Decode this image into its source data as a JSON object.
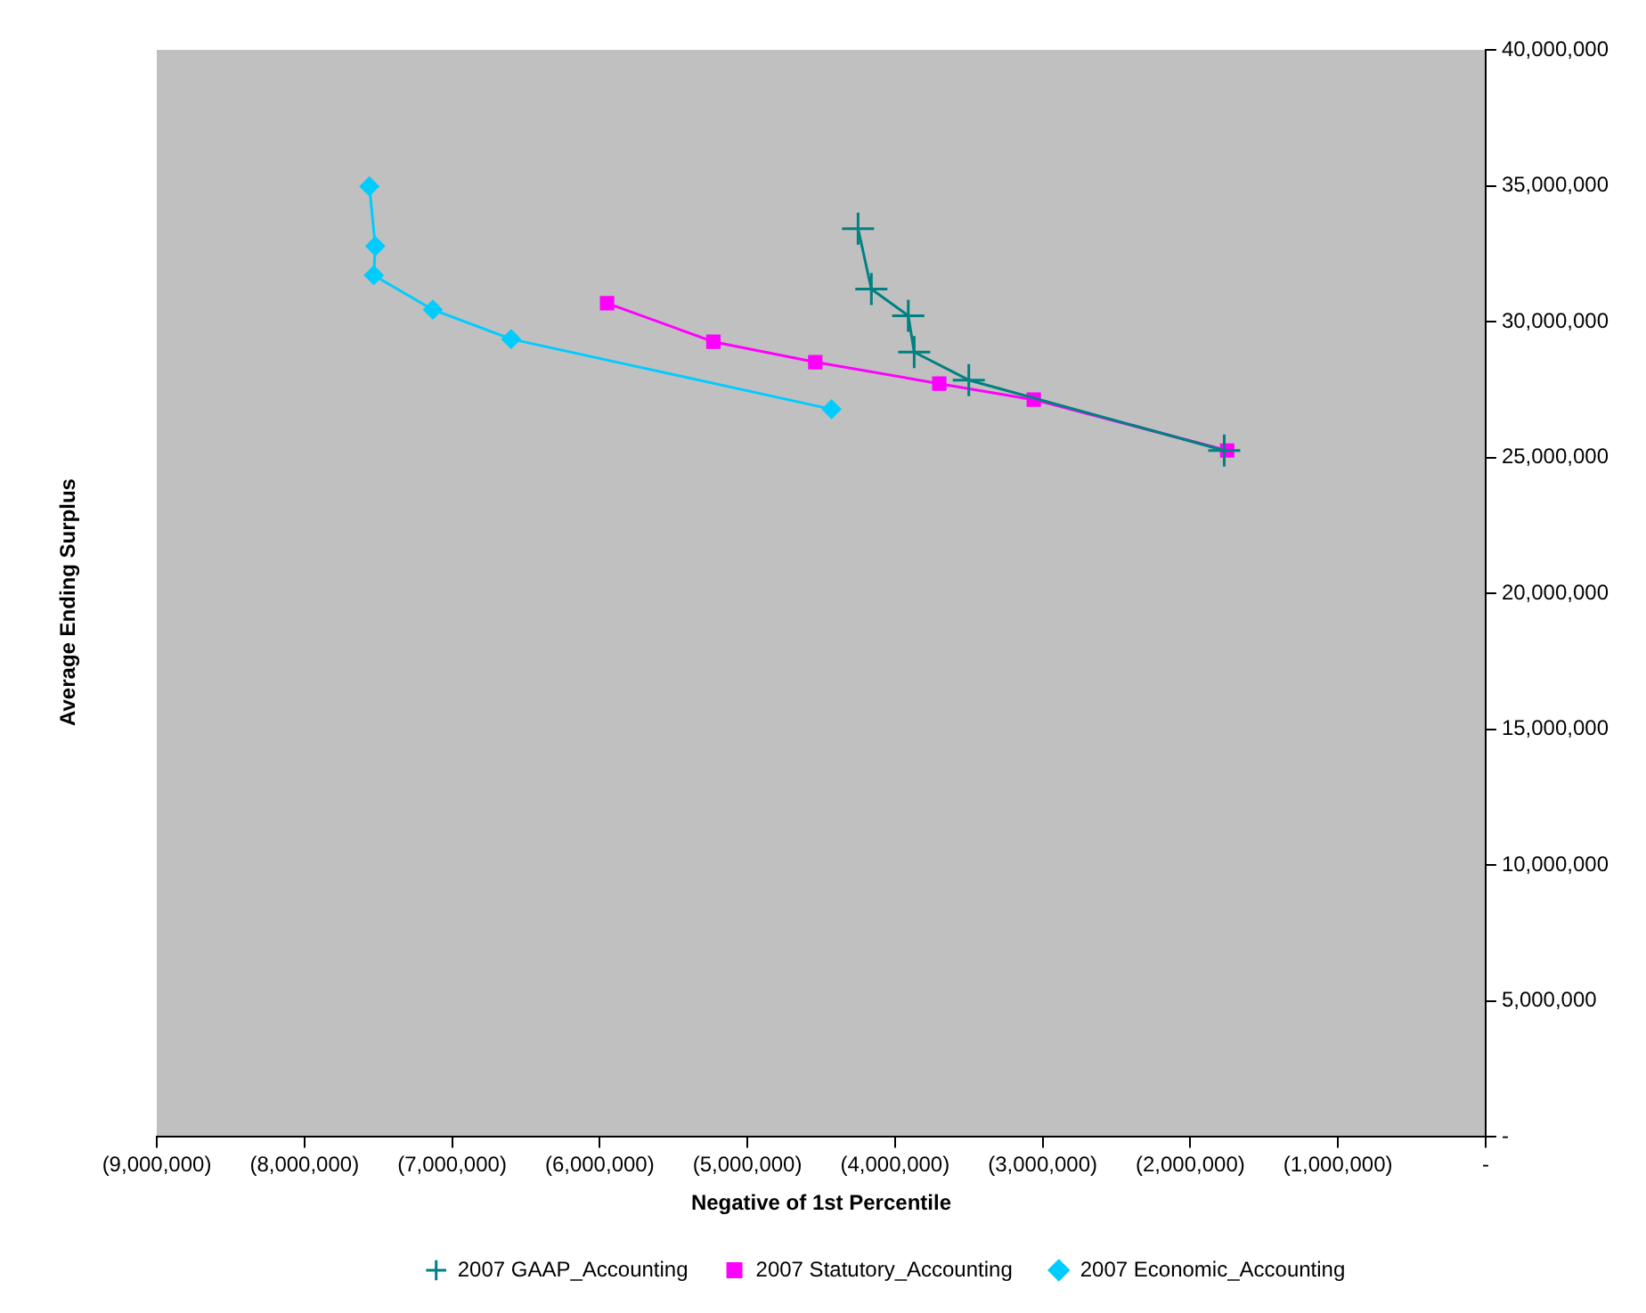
{
  "chart_data": {
    "type": "line",
    "xlabel": "Negative of 1st Percentile",
    "ylabel": "Average Ending Surplus",
    "xlim": [
      -9000000,
      0
    ],
    "ylim": [
      0,
      40000000
    ],
    "xticks": [
      {
        "value": -9000000,
        "label": "(9,000,000)"
      },
      {
        "value": -8000000,
        "label": "(8,000,000)"
      },
      {
        "value": -7000000,
        "label": "(7,000,000)"
      },
      {
        "value": -6000000,
        "label": "(6,000,000)"
      },
      {
        "value": -5000000,
        "label": "(5,000,000)"
      },
      {
        "value": -4000000,
        "label": "(4,000,000)"
      },
      {
        "value": -3000000,
        "label": "(3,000,000)"
      },
      {
        "value": -2000000,
        "label": "(2,000,000)"
      },
      {
        "value": -1000000,
        "label": "(1,000,000)"
      },
      {
        "value": 0,
        "label": "-"
      }
    ],
    "yticks": [
      {
        "value": 0,
        "label": "-"
      },
      {
        "value": 5000000,
        "label": "5,000,000"
      },
      {
        "value": 10000000,
        "label": "10,000,000"
      },
      {
        "value": 15000000,
        "label": "15,000,000"
      },
      {
        "value": 20000000,
        "label": "20,000,000"
      },
      {
        "value": 25000000,
        "label": "25,000,000"
      },
      {
        "value": 30000000,
        "label": "30,000,000"
      },
      {
        "value": 35000000,
        "label": "35,000,000"
      },
      {
        "value": 40000000,
        "label": "40,000,000"
      }
    ],
    "grid": false,
    "legend": "bottom",
    "line_style": "solid",
    "series": [
      {
        "name": "2007 Statutory_Accounting",
        "color": "#ff00ff",
        "marker": "square",
        "x": [
          -5950000,
          -5230000,
          -4540000,
          -3700000,
          -3060000,
          -1750000
        ],
        "values": [
          30680000,
          29260000,
          28510000,
          27720000,
          27130000,
          25260000
        ]
      },
      {
        "name": "2007 GAAP_Accounting",
        "color": "#008080",
        "marker": "cross",
        "x": [
          -4250000,
          -4160000,
          -3910000,
          -3870000,
          -3500000,
          -1770000
        ],
        "values": [
          33420000,
          31200000,
          30220000,
          28880000,
          27850000,
          25260000
        ]
      },
      {
        "name": "2007 Economic_Accounting",
        "color": "#00ccff",
        "marker": "diamond",
        "x": [
          -7560000,
          -7520000,
          -7530000,
          -7130000,
          -6600000,
          -4430000
        ],
        "values": [
          34980000,
          32780000,
          31710000,
          30440000,
          29360000,
          26780000
        ]
      }
    ]
  }
}
